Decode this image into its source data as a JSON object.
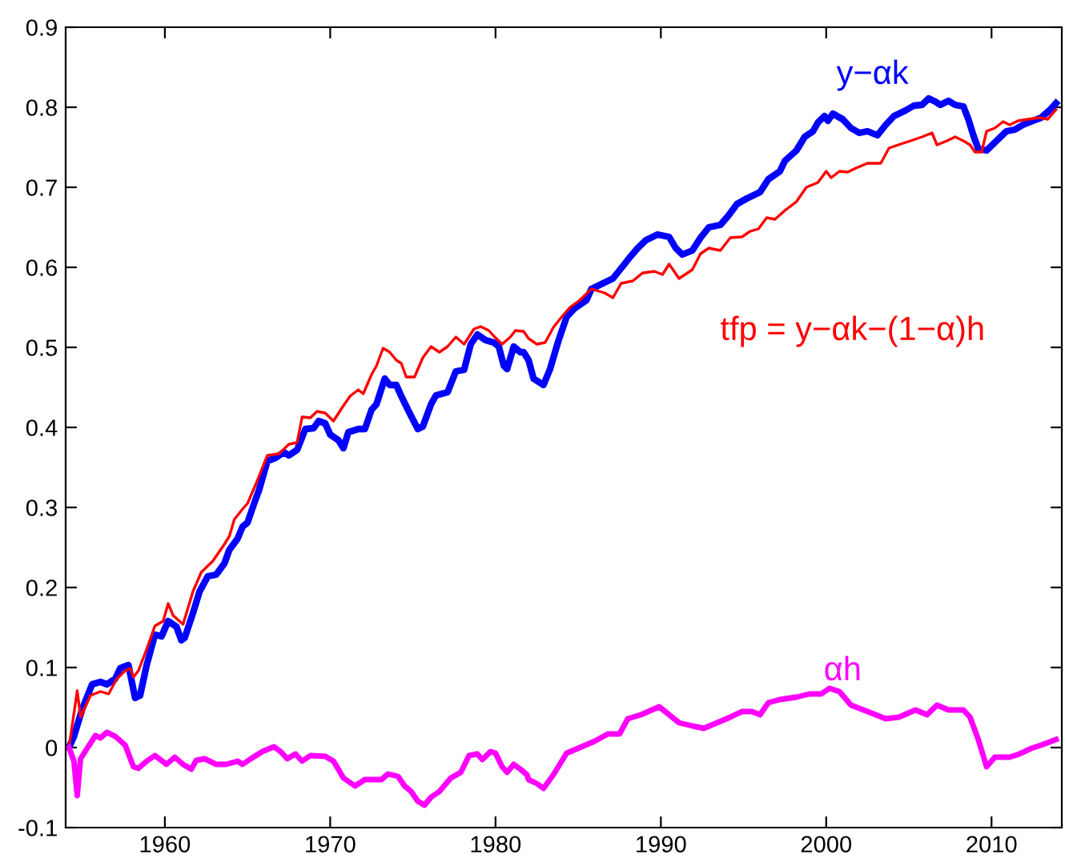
{
  "chart_data": {
    "type": "line",
    "xlim": [
      1954,
      2014.25
    ],
    "xticks": [
      1960,
      1970,
      1980,
      1990,
      2000,
      2010
    ],
    "ylim": [
      -0.1,
      0.9
    ],
    "yticks": [
      -0.1,
      0,
      0.1,
      0.2,
      0.3,
      0.4,
      0.5,
      0.6,
      0.7,
      0.8,
      0.9
    ],
    "grid": false,
    "legend": false,
    "marker": "none",
    "line_style": "solid",
    "series": [
      {
        "name": "y−αk",
        "color": "#0000ff",
        "x": [
          1954.2,
          1954.5,
          1955.0,
          1955.6,
          1956.1,
          1956.5,
          1957.0,
          1957.3,
          1957.8,
          1958.2,
          1958.5,
          1958.9,
          1959.4,
          1959.8,
          1960.2,
          1960.7,
          1961.0,
          1961.2,
          1961.7,
          1962.1,
          1962.6,
          1963.1,
          1963.6,
          1963.9,
          1964.4,
          1964.7,
          1965.0,
          1965.4,
          1965.7,
          1966.2,
          1966.7,
          1967.2,
          1967.5,
          1968.0,
          1968.5,
          1969.0,
          1969.3,
          1969.7,
          1970.0,
          1970.5,
          1970.8,
          1971.1,
          1971.7,
          1972.1,
          1972.5,
          1972.8,
          1973.3,
          1973.6,
          1974.0,
          1974.3,
          1974.8,
          1975.3,
          1975.6,
          1976.1,
          1976.4,
          1977.1,
          1977.6,
          1978.1,
          1978.5,
          1978.9,
          1979.4,
          1979.9,
          1980.2,
          1980.5,
          1980.7,
          1981.1,
          1981.5,
          1981.7,
          1982.0,
          1982.3,
          1982.9,
          1983.3,
          1983.8,
          1984.3,
          1984.8,
          1985.5,
          1985.8,
          1986.5,
          1987.1,
          1987.8,
          1988.1,
          1988.6,
          1989.1,
          1989.8,
          1990.5,
          1990.9,
          1991.3,
          1991.9,
          1992.4,
          1992.9,
          1993.6,
          1994.1,
          1994.6,
          1995.2,
          1996.0,
          1996.5,
          1997.2,
          1997.5,
          1998.2,
          1998.7,
          1999.2,
          1999.5,
          1999.9,
          2000.1,
          2000.4,
          2001.0,
          2001.5,
          2002.0,
          2002.5,
          2003.1,
          2003.6,
          2004.1,
          2004.8,
          2005.3,
          2005.8,
          2006.2,
          2006.6,
          2006.9,
          2007.4,
          2007.8,
          2008.3,
          2008.6,
          2008.9,
          2009.2,
          2009.7,
          2010.2,
          2010.9,
          2011.4,
          2011.9,
          2012.5,
          2013.0,
          2013.5,
          2013.9
        ],
        "values": [
          0.0,
          0.014,
          0.048,
          0.079,
          0.082,
          0.079,
          0.086,
          0.099,
          0.103,
          0.062,
          0.065,
          0.103,
          0.141,
          0.139,
          0.158,
          0.151,
          0.134,
          0.137,
          0.168,
          0.195,
          0.214,
          0.216,
          0.23,
          0.247,
          0.261,
          0.276,
          0.281,
          0.305,
          0.322,
          0.358,
          0.362,
          0.369,
          0.365,
          0.372,
          0.398,
          0.399,
          0.408,
          0.405,
          0.391,
          0.384,
          0.374,
          0.394,
          0.398,
          0.398,
          0.422,
          0.429,
          0.461,
          0.453,
          0.453,
          0.439,
          0.418,
          0.398,
          0.401,
          0.429,
          0.44,
          0.444,
          0.47,
          0.472,
          0.504,
          0.516,
          0.509,
          0.506,
          0.501,
          0.477,
          0.473,
          0.501,
          0.494,
          0.494,
          0.484,
          0.461,
          0.453,
          0.473,
          0.508,
          0.538,
          0.549,
          0.559,
          0.573,
          0.58,
          0.586,
          0.604,
          0.612,
          0.624,
          0.634,
          0.641,
          0.638,
          0.624,
          0.616,
          0.621,
          0.637,
          0.65,
          0.653,
          0.665,
          0.679,
          0.686,
          0.694,
          0.71,
          0.72,
          0.733,
          0.746,
          0.763,
          0.77,
          0.781,
          0.789,
          0.783,
          0.792,
          0.785,
          0.774,
          0.768,
          0.77,
          0.765,
          0.778,
          0.789,
          0.796,
          0.802,
          0.803,
          0.811,
          0.807,
          0.803,
          0.808,
          0.803,
          0.801,
          0.785,
          0.765,
          0.748,
          0.746,
          0.756,
          0.77,
          0.772,
          0.778,
          0.783,
          0.787,
          0.796,
          0.805
        ]
      },
      {
        "name": "tfp = y−αk−(1−α)h",
        "color": "#ff0000",
        "x": [
          1954.2,
          1954.7,
          1954.9,
          1955.5,
          1956.1,
          1956.6,
          1957.1,
          1957.6,
          1957.9,
          1958.1,
          1958.4,
          1958.9,
          1959.4,
          1959.9,
          1960.2,
          1960.5,
          1961.1,
          1961.7,
          1962.2,
          1962.9,
          1963.6,
          1963.9,
          1964.2,
          1964.7,
          1965.0,
          1965.5,
          1966.2,
          1966.9,
          1967.5,
          1968.0,
          1968.3,
          1968.8,
          1969.2,
          1969.7,
          1970.2,
          1970.7,
          1971.2,
          1971.7,
          1972.0,
          1972.5,
          1972.8,
          1973.2,
          1973.6,
          1974.0,
          1974.3,
          1974.6,
          1975.1,
          1975.6,
          1976.1,
          1976.6,
          1977.1,
          1977.6,
          1978.1,
          1978.7,
          1979.1,
          1979.6,
          1979.9,
          1980.4,
          1980.9,
          1981.2,
          1981.7,
          1982.0,
          1982.5,
          1983.0,
          1983.5,
          1984.0,
          1984.5,
          1985.1,
          1985.8,
          1986.6,
          1987.1,
          1987.6,
          1988.3,
          1988.9,
          1989.6,
          1990.1,
          1990.5,
          1991.1,
          1991.9,
          1992.4,
          1992.9,
          1993.6,
          1994.2,
          1994.9,
          1995.4,
          1995.9,
          1996.4,
          1996.9,
          1997.5,
          1998.2,
          1998.8,
          1999.5,
          2000.0,
          2000.3,
          2000.8,
          2001.3,
          2001.8,
          2002.5,
          2003.3,
          2003.8,
          2004.5,
          2005.1,
          2005.8,
          2006.4,
          2006.7,
          2007.3,
          2007.8,
          2008.3,
          2008.7,
          2009.0,
          2009.4,
          2009.7,
          2010.2,
          2010.7,
          2011.1,
          2011.6,
          2012.2,
          2012.9,
          2013.4,
          2013.9
        ],
        "values": [
          0.0,
          0.071,
          0.038,
          0.065,
          0.07,
          0.067,
          0.086,
          0.096,
          0.099,
          0.088,
          0.096,
          0.123,
          0.152,
          0.158,
          0.18,
          0.165,
          0.154,
          0.195,
          0.219,
          0.233,
          0.254,
          0.264,
          0.285,
          0.298,
          0.305,
          0.329,
          0.365,
          0.367,
          0.379,
          0.381,
          0.413,
          0.412,
          0.42,
          0.418,
          0.408,
          0.424,
          0.439,
          0.447,
          0.442,
          0.466,
          0.477,
          0.499,
          0.494,
          0.484,
          0.48,
          0.463,
          0.463,
          0.487,
          0.501,
          0.494,
          0.501,
          0.513,
          0.504,
          0.523,
          0.526,
          0.521,
          0.514,
          0.504,
          0.513,
          0.521,
          0.52,
          0.511,
          0.504,
          0.506,
          0.525,
          0.538,
          0.55,
          0.559,
          0.573,
          0.568,
          0.562,
          0.58,
          0.583,
          0.593,
          0.595,
          0.591,
          0.604,
          0.586,
          0.597,
          0.617,
          0.624,
          0.621,
          0.637,
          0.638,
          0.645,
          0.648,
          0.662,
          0.66,
          0.671,
          0.682,
          0.7,
          0.706,
          0.72,
          0.712,
          0.72,
          0.719,
          0.724,
          0.73,
          0.73,
          0.749,
          0.754,
          0.758,
          0.763,
          0.768,
          0.753,
          0.758,
          0.763,
          0.758,
          0.753,
          0.744,
          0.744,
          0.77,
          0.774,
          0.782,
          0.778,
          0.783,
          0.785,
          0.787,
          0.785,
          0.797
        ]
      },
      {
        "name": "αh",
        "color": "#ff00ff",
        "x": [
          1954.2,
          1954.5,
          1954.7,
          1954.9,
          1955.3,
          1955.8,
          1956.1,
          1956.5,
          1957.0,
          1957.6,
          1958.1,
          1958.4,
          1958.9,
          1959.4,
          1960.1,
          1960.6,
          1961.1,
          1961.6,
          1961.9,
          1962.4,
          1963.1,
          1963.7,
          1964.4,
          1964.7,
          1965.2,
          1965.9,
          1966.6,
          1967.0,
          1967.4,
          1967.9,
          1968.3,
          1968.8,
          1969.7,
          1970.2,
          1970.8,
          1971.5,
          1972.1,
          1973.1,
          1973.5,
          1974.1,
          1974.5,
          1974.9,
          1975.3,
          1975.7,
          1976.1,
          1976.6,
          1977.3,
          1977.9,
          1978.4,
          1978.9,
          1979.2,
          1979.7,
          1980.0,
          1980.4,
          1980.7,
          1981.1,
          1981.5,
          1981.9,
          1982.0,
          1982.5,
          1982.9,
          1983.5,
          1984.3,
          1985.1,
          1986.0,
          1986.8,
          1987.5,
          1988.0,
          1988.8,
          1989.9,
          1990.5,
          1991.1,
          1991.9,
          1992.6,
          1993.4,
          1994.2,
          1994.9,
          1995.5,
          1996.0,
          1996.5,
          1997.2,
          1998.2,
          1999.0,
          1999.7,
          2000.2,
          2000.8,
          2001.5,
          2002.5,
          2003.6,
          2004.4,
          2005.4,
          2006.1,
          2006.7,
          2007.4,
          2008.3,
          2008.7,
          2009.2,
          2009.7,
          2010.2,
          2011.1,
          2011.7,
          2012.4,
          2013.0,
          2013.9
        ],
        "values": [
          0.0,
          -0.017,
          -0.06,
          -0.014,
          -0.001,
          0.015,
          0.012,
          0.019,
          0.014,
          0.003,
          -0.024,
          -0.026,
          -0.017,
          -0.01,
          -0.021,
          -0.012,
          -0.021,
          -0.027,
          -0.016,
          -0.014,
          -0.021,
          -0.021,
          -0.017,
          -0.021,
          -0.014,
          -0.005,
          0.001,
          -0.005,
          -0.014,
          -0.008,
          -0.017,
          -0.01,
          -0.011,
          -0.017,
          -0.038,
          -0.048,
          -0.04,
          -0.04,
          -0.033,
          -0.036,
          -0.048,
          -0.055,
          -0.067,
          -0.072,
          -0.062,
          -0.055,
          -0.038,
          -0.031,
          -0.01,
          -0.008,
          -0.015,
          -0.005,
          -0.007,
          -0.024,
          -0.031,
          -0.021,
          -0.027,
          -0.034,
          -0.04,
          -0.045,
          -0.051,
          -0.034,
          -0.007,
          0.0,
          0.008,
          0.017,
          0.017,
          0.036,
          0.041,
          0.051,
          0.041,
          0.031,
          0.027,
          0.024,
          0.031,
          0.038,
          0.045,
          0.045,
          0.041,
          0.056,
          0.06,
          0.063,
          0.067,
          0.067,
          0.074,
          0.07,
          0.053,
          0.045,
          0.036,
          0.038,
          0.047,
          0.041,
          0.053,
          0.047,
          0.047,
          0.038,
          0.01,
          -0.024,
          -0.012,
          -0.012,
          -0.008,
          -0.001,
          0.003,
          0.01
        ]
      }
    ]
  }
}
